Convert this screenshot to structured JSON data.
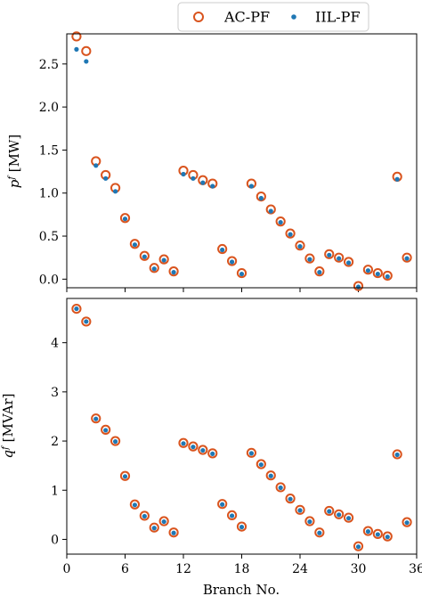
{
  "colors": {
    "ac_pf": "#d9541e",
    "iil_pf": "#1f77b4",
    "axis": "#000000"
  },
  "legend": {
    "position": "top-center",
    "entries": [
      {
        "label": "AC-PF",
        "marker": "hollow-circle",
        "color": "#d9541e"
      },
      {
        "label": "IIL-PF",
        "marker": "dot",
        "color": "#1f77b4"
      }
    ]
  },
  "chart_data": [
    {
      "type": "scatter",
      "xlabel": "",
      "ylabel_base": "p",
      "ylabel_sup": "f",
      "ylabel_unit": " [MW]",
      "xlim": [
        0,
        36
      ],
      "ylim": [
        -0.1,
        2.85
      ],
      "xticks": [
        0,
        6,
        12,
        18,
        24,
        30,
        36
      ],
      "yticks": [
        0.0,
        0.5,
        1.0,
        1.5,
        2.0,
        2.5
      ],
      "ytick_labels": [
        "0.0",
        "0.5",
        "1.0",
        "1.5",
        "2.0",
        "2.5"
      ],
      "show_xtick_labels": false,
      "grid": false,
      "x": [
        1,
        2,
        3,
        4,
        5,
        6,
        7,
        8,
        9,
        10,
        11,
        12,
        13,
        14,
        15,
        16,
        17,
        18,
        19,
        20,
        21,
        22,
        23,
        24,
        25,
        26,
        27,
        28,
        29,
        30,
        31,
        32,
        33,
        34,
        35
      ],
      "series": [
        {
          "name": "AC-PF",
          "marker": "hollow-circle",
          "values": [
            2.82,
            2.65,
            1.37,
            1.21,
            1.06,
            0.71,
            0.41,
            0.27,
            0.13,
            0.23,
            0.09,
            1.26,
            1.21,
            1.15,
            1.11,
            0.35,
            0.21,
            0.07,
            1.11,
            0.96,
            0.81,
            0.67,
            0.53,
            0.39,
            0.24,
            0.09,
            0.29,
            0.25,
            0.2,
            -0.08,
            0.11,
            0.07,
            0.04,
            1.19,
            0.25
          ]
        },
        {
          "name": "IIL-PF",
          "marker": "dot",
          "values": [
            2.67,
            2.53,
            1.32,
            1.17,
            1.02,
            0.7,
            0.4,
            0.26,
            0.12,
            0.22,
            0.08,
            1.22,
            1.17,
            1.12,
            1.08,
            0.34,
            0.2,
            0.06,
            1.08,
            0.94,
            0.79,
            0.66,
            0.52,
            0.38,
            0.23,
            0.08,
            0.28,
            0.24,
            0.19,
            -0.09,
            0.1,
            0.06,
            0.03,
            1.16,
            0.24
          ]
        }
      ]
    },
    {
      "type": "scatter",
      "xlabel": "Branch No.",
      "ylabel_base": "q",
      "ylabel_sup": "f",
      "ylabel_unit": " [MVAr]",
      "xlim": [
        0,
        36
      ],
      "ylim": [
        -0.3,
        4.9
      ],
      "xticks": [
        0,
        6,
        12,
        18,
        24,
        30,
        36
      ],
      "xtick_labels": [
        "0",
        "6",
        "12",
        "18",
        "24",
        "30",
        "36"
      ],
      "yticks": [
        0,
        1,
        2,
        3,
        4
      ],
      "ytick_labels": [
        "0",
        "1",
        "2",
        "3",
        "4"
      ],
      "show_xtick_labels": true,
      "grid": false,
      "x": [
        1,
        2,
        3,
        4,
        5,
        6,
        7,
        8,
        9,
        10,
        11,
        12,
        13,
        14,
        15,
        16,
        17,
        18,
        19,
        20,
        21,
        22,
        23,
        24,
        25,
        26,
        27,
        28,
        29,
        30,
        31,
        32,
        33,
        34,
        35
      ],
      "series": [
        {
          "name": "AC-PF",
          "marker": "hollow-circle",
          "values": [
            4.69,
            4.43,
            2.46,
            2.23,
            2.0,
            1.29,
            0.71,
            0.48,
            0.24,
            0.37,
            0.14,
            1.96,
            1.89,
            1.82,
            1.75,
            0.72,
            0.49,
            0.26,
            1.76,
            1.53,
            1.3,
            1.06,
            0.83,
            0.6,
            0.37,
            0.14,
            0.58,
            0.51,
            0.44,
            -0.14,
            0.17,
            0.11,
            0.06,
            1.73,
            0.35
          ]
        },
        {
          "name": "IIL-PF",
          "marker": "dot",
          "values": [
            4.69,
            4.43,
            2.45,
            2.22,
            1.99,
            1.28,
            0.7,
            0.47,
            0.23,
            0.36,
            0.13,
            1.95,
            1.88,
            1.81,
            1.74,
            0.71,
            0.48,
            0.25,
            1.75,
            1.52,
            1.29,
            1.05,
            0.82,
            0.59,
            0.36,
            0.13,
            0.57,
            0.5,
            0.43,
            -0.15,
            0.16,
            0.1,
            0.05,
            1.72,
            0.34
          ]
        }
      ]
    }
  ]
}
